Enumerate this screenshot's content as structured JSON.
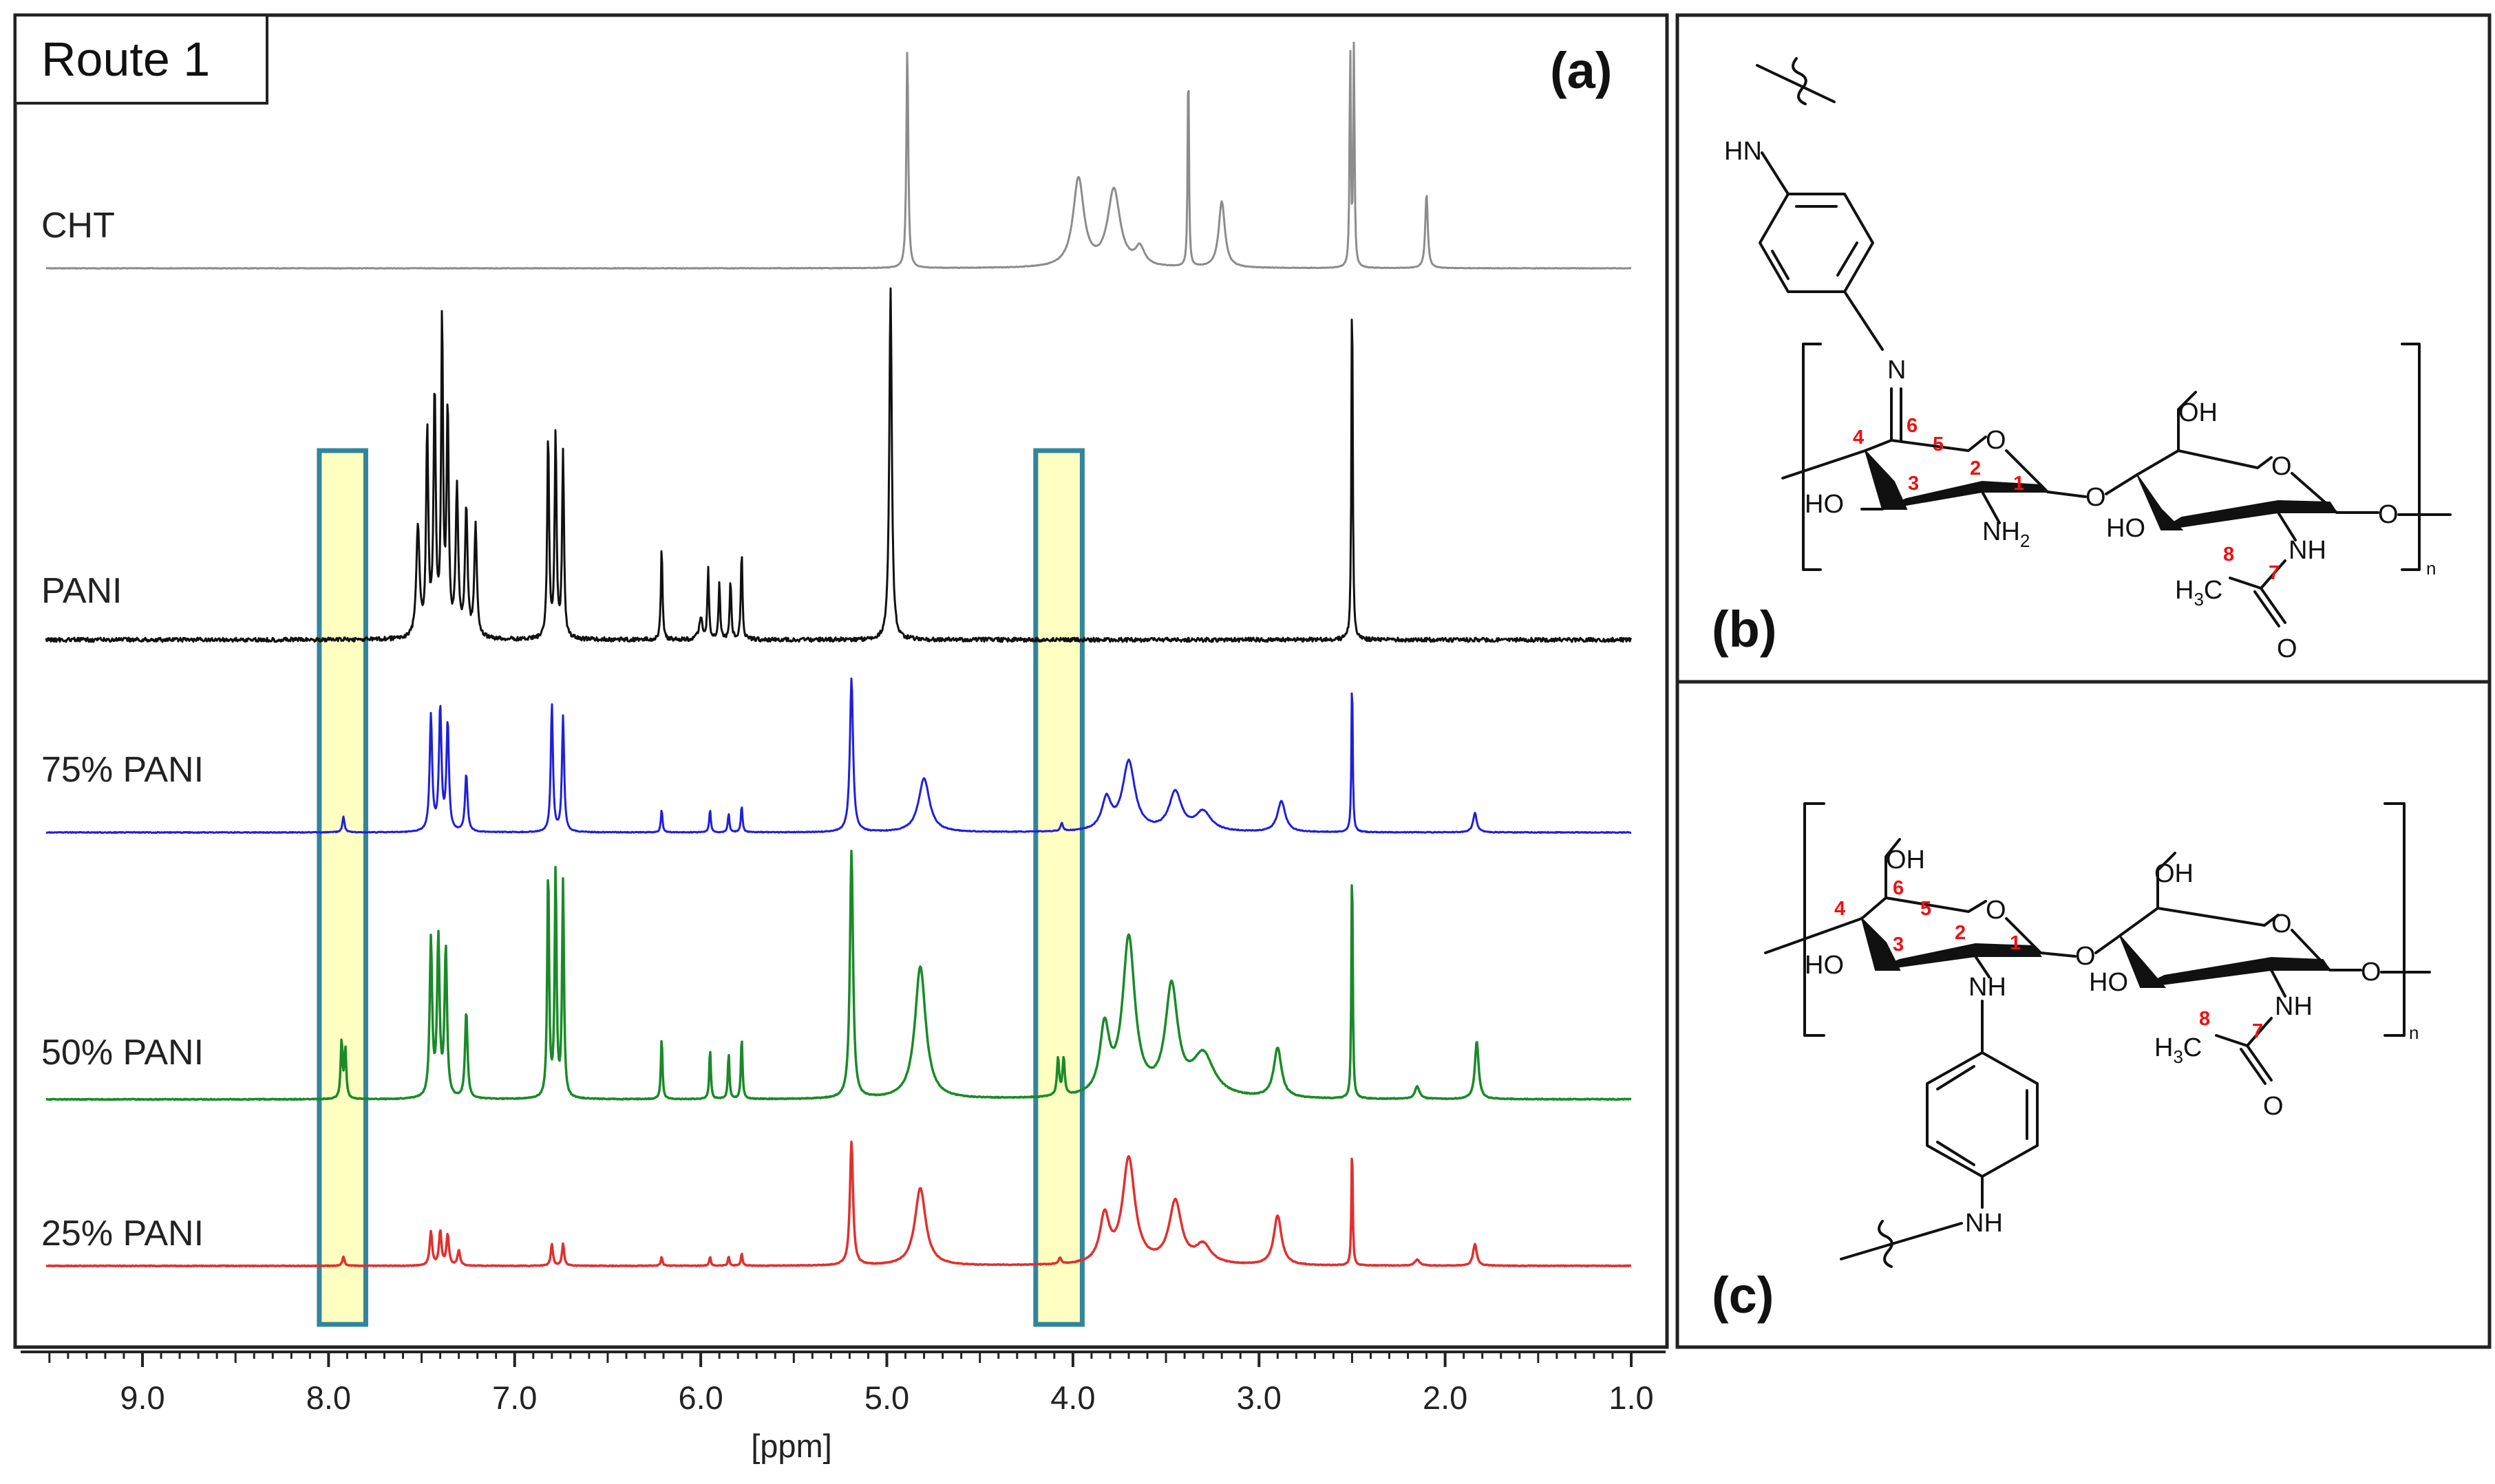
{
  "panel_a": {
    "route_label": "Route 1",
    "panel_label": "(a)"
  },
  "panel_b": {
    "panel_label": "(b)"
  },
  "panel_c": {
    "panel_label": "(c)"
  },
  "chart_data": {
    "type": "line",
    "title": "",
    "xlabel": "[ppm]",
    "ylabel": "",
    "x_axis_reversed": true,
    "xlim": [
      9.6,
      1.0
    ],
    "x_ticks": [
      9.0,
      8.0,
      7.0,
      6.0,
      5.0,
      4.0,
      3.0,
      2.0,
      1.0
    ],
    "x_tick_labels": [
      "9.0",
      "8.0",
      "7.0",
      "6.0",
      "5.0",
      "4.0",
      "3.0",
      "2.0",
      "1.0"
    ],
    "highlight_regions_ppm": [
      [
        8.05,
        7.8
      ],
      [
        4.2,
        3.95
      ]
    ],
    "highlight_color": "#ffff99",
    "highlight_border_color": "#31859c",
    "series": [
      {
        "name": "CHT",
        "color": "#8c8c8c",
        "x_start": 9.6,
        "x_end": 1.0,
        "peaks": [
          {
            "ppm": 4.89,
            "height": 1.0,
            "width": 0.006
          },
          {
            "ppm": 3.97,
            "height": 0.4,
            "width": 0.035
          },
          {
            "ppm": 3.78,
            "height": 0.35,
            "width": 0.04
          },
          {
            "ppm": 3.64,
            "height": 0.08,
            "width": 0.03
          },
          {
            "ppm": 3.38,
            "height": 0.96,
            "width": 0.004
          },
          {
            "ppm": 3.2,
            "height": 0.3,
            "width": 0.02
          },
          {
            "ppm": 2.51,
            "height": 1.0,
            "width": 0.004
          },
          {
            "ppm": 2.49,
            "height": 1.0,
            "width": 0.004
          },
          {
            "ppm": 2.1,
            "height": 0.34,
            "width": 0.008
          }
        ]
      },
      {
        "name": "PANI",
        "color": "#111111",
        "x_start": 9.6,
        "x_end": 1.0,
        "peaks": [
          {
            "ppm": 7.52,
            "height": 0.3,
            "width": 0.01
          },
          {
            "ppm": 7.47,
            "height": 0.55,
            "width": 0.007
          },
          {
            "ppm": 7.43,
            "height": 0.65,
            "width": 0.007
          },
          {
            "ppm": 7.39,
            "height": 0.85,
            "width": 0.006
          },
          {
            "ppm": 7.36,
            "height": 0.6,
            "width": 0.007
          },
          {
            "ppm": 7.31,
            "height": 0.4,
            "width": 0.008
          },
          {
            "ppm": 7.26,
            "height": 0.35,
            "width": 0.008
          },
          {
            "ppm": 7.21,
            "height": 0.3,
            "width": 0.008
          },
          {
            "ppm": 6.82,
            "height": 0.55,
            "width": 0.006
          },
          {
            "ppm": 6.78,
            "height": 0.55,
            "width": 0.006
          },
          {
            "ppm": 6.74,
            "height": 0.5,
            "width": 0.006
          },
          {
            "ppm": 6.21,
            "height": 0.25,
            "width": 0.005
          },
          {
            "ppm": 6.0,
            "height": 0.06,
            "width": 0.01
          },
          {
            "ppm": 5.96,
            "height": 0.19,
            "width": 0.005
          },
          {
            "ppm": 5.9,
            "height": 0.15,
            "width": 0.005
          },
          {
            "ppm": 5.84,
            "height": 0.16,
            "width": 0.005
          },
          {
            "ppm": 5.78,
            "height": 0.24,
            "width": 0.005
          },
          {
            "ppm": 4.98,
            "height": 0.95,
            "width": 0.008
          },
          {
            "ppm": 2.5,
            "height": 1.0,
            "width": 0.004
          }
        ]
      },
      {
        "name": "75% PANI",
        "color": "#1f1fdd",
        "x_start": 9.6,
        "x_end": 1.0,
        "peaks": [
          {
            "ppm": 7.92,
            "height": 0.04,
            "width": 0.007
          },
          {
            "ppm": 7.45,
            "height": 0.3,
            "width": 0.008
          },
          {
            "ppm": 7.4,
            "height": 0.32,
            "width": 0.008
          },
          {
            "ppm": 7.36,
            "height": 0.28,
            "width": 0.008
          },
          {
            "ppm": 7.26,
            "height": 0.15,
            "width": 0.008
          },
          {
            "ppm": 6.8,
            "height": 0.33,
            "width": 0.007
          },
          {
            "ppm": 6.74,
            "height": 0.3,
            "width": 0.007
          },
          {
            "ppm": 6.21,
            "height": 0.06,
            "width": 0.005
          },
          {
            "ppm": 5.95,
            "height": 0.06,
            "width": 0.005
          },
          {
            "ppm": 5.85,
            "height": 0.05,
            "width": 0.005
          },
          {
            "ppm": 5.78,
            "height": 0.07,
            "width": 0.005
          },
          {
            "ppm": 5.19,
            "height": 0.4,
            "width": 0.01
          },
          {
            "ppm": 4.8,
            "height": 0.14,
            "width": 0.035
          },
          {
            "ppm": 4.06,
            "height": 0.02,
            "width": 0.008
          },
          {
            "ppm": 3.82,
            "height": 0.08,
            "width": 0.03
          },
          {
            "ppm": 3.7,
            "height": 0.18,
            "width": 0.04
          },
          {
            "ppm": 3.45,
            "height": 0.1,
            "width": 0.04
          },
          {
            "ppm": 3.3,
            "height": 0.05,
            "width": 0.05
          },
          {
            "ppm": 2.88,
            "height": 0.08,
            "width": 0.025
          },
          {
            "ppm": 2.5,
            "height": 0.42,
            "width": 0.004
          },
          {
            "ppm": 1.84,
            "height": 0.05,
            "width": 0.012
          }
        ]
      },
      {
        "name": "50% PANI",
        "color": "#1a8a28",
        "x_start": 9.6,
        "x_end": 1.0,
        "peaks": [
          {
            "ppm": 7.93,
            "height": 0.14,
            "width": 0.006
          },
          {
            "ppm": 7.91,
            "height": 0.12,
            "width": 0.006
          },
          {
            "ppm": 7.45,
            "height": 0.38,
            "width": 0.008
          },
          {
            "ppm": 7.41,
            "height": 0.38,
            "width": 0.008
          },
          {
            "ppm": 7.37,
            "height": 0.36,
            "width": 0.008
          },
          {
            "ppm": 7.26,
            "height": 0.21,
            "width": 0.008
          },
          {
            "ppm": 6.82,
            "height": 0.55,
            "width": 0.006
          },
          {
            "ppm": 6.78,
            "height": 0.55,
            "width": 0.006
          },
          {
            "ppm": 6.74,
            "height": 0.52,
            "width": 0.006
          },
          {
            "ppm": 6.21,
            "height": 0.15,
            "width": 0.005
          },
          {
            "ppm": 5.95,
            "height": 0.12,
            "width": 0.005
          },
          {
            "ppm": 5.85,
            "height": 0.11,
            "width": 0.005
          },
          {
            "ppm": 5.78,
            "height": 0.15,
            "width": 0.005
          },
          {
            "ppm": 5.19,
            "height": 0.6,
            "width": 0.01
          },
          {
            "ppm": 4.82,
            "height": 0.32,
            "width": 0.035
          },
          {
            "ppm": 4.08,
            "height": 0.09,
            "width": 0.007
          },
          {
            "ppm": 4.05,
            "height": 0.09,
            "width": 0.007
          },
          {
            "ppm": 3.83,
            "height": 0.16,
            "width": 0.03
          },
          {
            "ppm": 3.7,
            "height": 0.38,
            "width": 0.04
          },
          {
            "ppm": 3.47,
            "height": 0.26,
            "width": 0.04
          },
          {
            "ppm": 3.3,
            "height": 0.1,
            "width": 0.07
          },
          {
            "ppm": 2.9,
            "height": 0.12,
            "width": 0.025
          },
          {
            "ppm": 2.5,
            "height": 0.6,
            "width": 0.004
          },
          {
            "ppm": 2.15,
            "height": 0.03,
            "width": 0.015
          },
          {
            "ppm": 1.83,
            "height": 0.14,
            "width": 0.012
          }
        ]
      },
      {
        "name": "25% PANI",
        "color": "#e03030",
        "x_start": 9.6,
        "x_end": 1.0,
        "peaks": [
          {
            "ppm": 7.92,
            "height": 0.03,
            "width": 0.007
          },
          {
            "ppm": 7.45,
            "height": 0.11,
            "width": 0.008
          },
          {
            "ppm": 7.4,
            "height": 0.11,
            "width": 0.008
          },
          {
            "ppm": 7.36,
            "height": 0.1,
            "width": 0.008
          },
          {
            "ppm": 7.3,
            "height": 0.05,
            "width": 0.008
          },
          {
            "ppm": 6.8,
            "height": 0.07,
            "width": 0.007
          },
          {
            "ppm": 6.74,
            "height": 0.07,
            "width": 0.007
          },
          {
            "ppm": 6.21,
            "height": 0.03,
            "width": 0.005
          },
          {
            "ppm": 5.95,
            "height": 0.03,
            "width": 0.005
          },
          {
            "ppm": 5.85,
            "height": 0.03,
            "width": 0.005
          },
          {
            "ppm": 5.78,
            "height": 0.04,
            "width": 0.005
          },
          {
            "ppm": 5.19,
            "height": 0.4,
            "width": 0.01
          },
          {
            "ppm": 4.82,
            "height": 0.25,
            "width": 0.035
          },
          {
            "ppm": 4.07,
            "height": 0.02,
            "width": 0.008
          },
          {
            "ppm": 3.83,
            "height": 0.15,
            "width": 0.03
          },
          {
            "ppm": 3.7,
            "height": 0.34,
            "width": 0.04
          },
          {
            "ppm": 3.45,
            "height": 0.2,
            "width": 0.04
          },
          {
            "ppm": 3.3,
            "height": 0.06,
            "width": 0.05
          },
          {
            "ppm": 2.9,
            "height": 0.16,
            "width": 0.025
          },
          {
            "ppm": 2.5,
            "height": 0.4,
            "width": 0.004
          },
          {
            "ppm": 2.15,
            "height": 0.02,
            "width": 0.015
          },
          {
            "ppm": 1.84,
            "height": 0.07,
            "width": 0.012
          }
        ]
      }
    ]
  },
  "structure_b": {
    "label_hn": "HN",
    "label_n": "N",
    "label_o_ring1": "O",
    "label_o_link": "O",
    "label_ho1": "HO",
    "label_nh2": "NH",
    "label_nh2_sub": "2",
    "label_oh": "OH",
    "label_o_ring2": "O",
    "label_ho2": "HO",
    "label_nh": "NH",
    "label_o_term": "O",
    "label_h3c": "H",
    "label_h3c_sub": "3",
    "label_h3c_c": "C",
    "label_o_carbonyl": "O",
    "label_n_sub": "n",
    "carbon_numbers": [
      "1",
      "2",
      "3",
      "4",
      "5",
      "6",
      "7",
      "8"
    ]
  },
  "structure_c": {
    "label_oh1": "OH",
    "label_o_ring1": "O",
    "label_ho1": "HO",
    "label_nh1": "NH",
    "label_o_link": "O",
    "label_oh2": "OH",
    "label_o_ring2": "O",
    "label_ho2": "HO",
    "label_nh2": "NH",
    "label_o_term": "O",
    "label_h3c": "H",
    "label_h3c_sub": "3",
    "label_h3c_c": "C",
    "label_o_carbonyl": "O",
    "label_nh_bottom": "NH",
    "label_n_sub": "n",
    "carbon_numbers": [
      "1",
      "2",
      "3",
      "4",
      "5",
      "6",
      "7",
      "8"
    ]
  }
}
